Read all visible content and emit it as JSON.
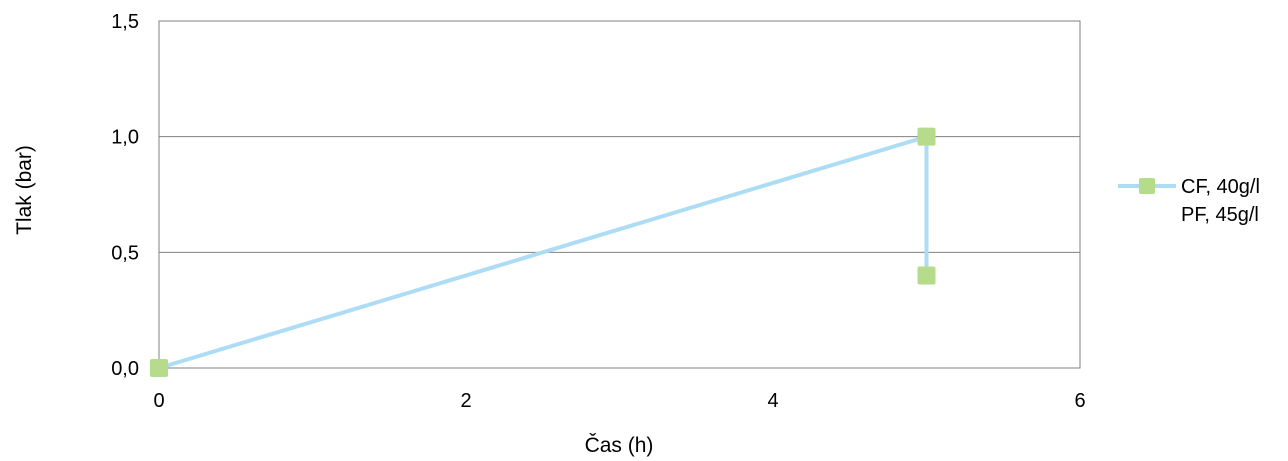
{
  "chart_data": {
    "type": "line",
    "title": "",
    "xlabel": "Čas (h)",
    "ylabel": "Tlak (bar)",
    "xlim": [
      0,
      6
    ],
    "ylim": [
      0,
      1.5
    ],
    "x_ticks": [
      "0",
      "2",
      "4",
      "6"
    ],
    "y_ticks": [
      "0,0",
      "0,5",
      "1,0",
      "1,5"
    ],
    "grid": "horizontal",
    "legend_position": "right",
    "series": [
      {
        "name": "CF, 40g/l PF, 45g/l",
        "legend_lines": [
          "CF, 40g/l",
          "PF, 45g/l"
        ],
        "x": [
          0,
          5,
          5
        ],
        "y": [
          0,
          1.0,
          0.4
        ],
        "line_color": "#ADDCF5",
        "marker_color": "#B5DB8B",
        "marker": "square"
      }
    ]
  }
}
